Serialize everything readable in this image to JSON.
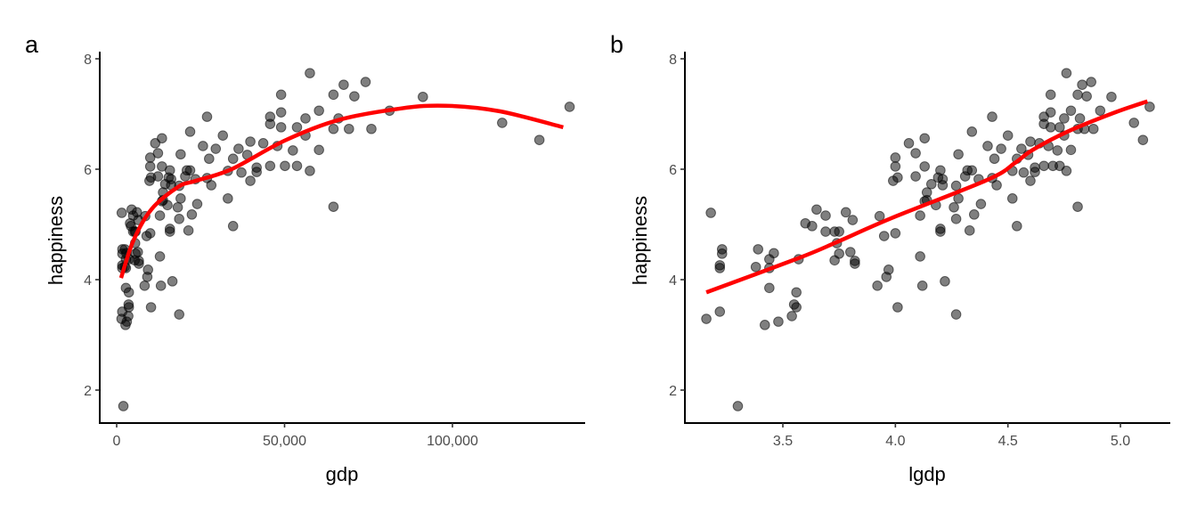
{
  "chart_data": [
    {
      "panel": "a",
      "type": "scatter",
      "xlabel": "gdp",
      "ylabel": "happiness",
      "xlim": [
        -5000,
        140000
      ],
      "ylim": [
        1.4,
        8.1
      ],
      "xticks": [
        0,
        50000,
        100000
      ],
      "xtick_labels": [
        "0",
        "50,000",
        "100,000"
      ],
      "yticks": [
        2,
        4,
        6,
        8
      ],
      "ytick_labels": [
        "2",
        "4",
        "6",
        "8"
      ],
      "point_color": "#000000",
      "smooth_color": "#ff0000",
      "x": [
        1514,
        1698,
        1698,
        1660,
        1660,
        1445,
        1660,
        1995,
        2455,
        2399,
        2754,
        2884,
        2754,
        2754,
        2630,
        3020,
        3467,
        3548,
        3631,
        3631,
        3715,
        3981,
        4266,
        4467,
        4898,
        4898,
        5370,
        5623,
        5495,
        5623,
        5370,
        6310,
        6607,
        6607,
        6026,
        6457,
        8511,
        8913,
        10000,
        8318,
        9333,
        9120,
        10233,
        12882,
        13183,
        12882,
        13804,
        57544,
        67608,
        74131,
        48978,
        64565,
        70795,
        91201,
        60256,
        48978,
        81283,
        45709,
        56234,
        66069,
        134896,
        114815,
        125893,
        45709,
        48978,
        53703,
        64565,
        69183,
        75858,
        56234,
        26915,
        21878,
        31623,
        13490,
        11482,
        25704,
        29512,
        39811,
        43652,
        47863,
        52481,
        60256,
        36308,
        12303,
        19055,
        27542,
        10000,
        10000,
        13490,
        34674,
        38905,
        15849,
        20893,
        21878,
        33113,
        41687,
        45709,
        50119,
        53703,
        57544,
        37154,
        41687,
        10233,
        9772,
        12303,
        15488,
        16218,
        20417,
        23442,
        26915,
        14454,
        16218,
        28184,
        39811,
        18621,
        13804,
        13490,
        15136,
        19055,
        33113,
        23988,
        18197,
        22387,
        18621,
        64565,
        15849,
        15849,
        21380,
        34674,
        16596,
        18621
      ],
      "y": [
        5.21,
        4.55,
        4.47,
        4.26,
        4.21,
        3.29,
        3.42,
        1.71,
        4.55,
        4.23,
        4.37,
        4.48,
        4.21,
        3.85,
        3.18,
        3.24,
        3.34,
        3.55,
        3.5,
        3.77,
        4.37,
        5.02,
        4.97,
        5.27,
        5.16,
        4.87,
        4.87,
        4.87,
        4.66,
        4.47,
        4.35,
        4.5,
        4.34,
        4.29,
        5.22,
        5.08,
        5.15,
        4.79,
        4.84,
        3.89,
        4.18,
        4.05,
        3.5,
        4.42,
        3.89,
        5.16,
        5.44,
        7.74,
        7.53,
        7.58,
        7.35,
        7.35,
        7.32,
        7.31,
        7.06,
        7.03,
        7.06,
        6.95,
        6.92,
        6.92,
        7.13,
        6.84,
        6.53,
        6.82,
        6.76,
        6.76,
        6.73,
        6.73,
        6.73,
        6.61,
        6.95,
        6.68,
        6.61,
        6.56,
        6.47,
        6.42,
        6.37,
        6.5,
        6.47,
        6.42,
        6.34,
        6.35,
        6.37,
        6.29,
        6.27,
        6.19,
        6.21,
        6.05,
        6.05,
        6.19,
        6.26,
        5.98,
        5.98,
        5.98,
        5.97,
        6.03,
        6.06,
        6.06,
        6.06,
        5.97,
        5.94,
        5.95,
        5.85,
        5.79,
        5.87,
        5.85,
        5.82,
        5.87,
        5.82,
        5.84,
        5.73,
        5.71,
        5.71,
        5.79,
        5.7,
        5.58,
        5.42,
        5.35,
        5.47,
        5.47,
        5.37,
        5.31,
        5.18,
        5.1,
        5.32,
        4.92,
        4.87,
        4.89,
        4.97,
        3.97,
        3.37
      ],
      "smooth": {
        "x": [
          1300,
          5000,
          10300,
          18300,
          23600,
          34200,
          50100,
          66000,
          84600,
          97900,
          114000,
          133000
        ],
        "y": [
          4.03,
          4.71,
          5.27,
          5.68,
          5.79,
          6.0,
          6.52,
          6.89,
          7.1,
          7.15,
          7.05,
          6.76
        ]
      }
    },
    {
      "panel": "b",
      "type": "scatter",
      "xlabel": "lgdp",
      "ylabel": "happiness",
      "xlim": [
        3.06,
        5.28
      ],
      "ylim": [
        1.4,
        8.1
      ],
      "xticks": [
        3.5,
        4.0,
        4.5,
        5.0
      ],
      "xtick_labels": [
        "3.5",
        "4.0",
        "4.5",
        "5.0"
      ],
      "yticks": [
        2,
        4,
        6,
        8
      ],
      "ytick_labels": [
        "2",
        "4",
        "6",
        "8"
      ],
      "point_color": "#000000",
      "smooth_color": "#ff0000",
      "x": [
        3.18,
        3.23,
        3.23,
        3.22,
        3.22,
        3.16,
        3.22,
        3.3,
        3.39,
        3.38,
        3.44,
        3.46,
        3.44,
        3.44,
        3.42,
        3.48,
        3.54,
        3.55,
        3.56,
        3.56,
        3.57,
        3.6,
        3.63,
        3.65,
        3.69,
        3.69,
        3.73,
        3.75,
        3.74,
        3.75,
        3.73,
        3.8,
        3.82,
        3.82,
        3.78,
        3.81,
        3.93,
        3.95,
        4.0,
        3.92,
        3.97,
        3.96,
        4.01,
        4.11,
        4.12,
        4.11,
        4.14,
        4.76,
        4.83,
        4.87,
        4.69,
        4.81,
        4.85,
        4.96,
        4.78,
        4.69,
        4.91,
        4.66,
        4.75,
        4.82,
        5.13,
        5.06,
        5.1,
        4.66,
        4.69,
        4.73,
        4.81,
        4.84,
        4.88,
        4.75,
        4.43,
        4.34,
        4.5,
        4.13,
        4.06,
        4.41,
        4.47,
        4.6,
        4.64,
        4.68,
        4.72,
        4.78,
        4.56,
        4.09,
        4.28,
        4.44,
        4.0,
        4.0,
        4.13,
        4.54,
        4.59,
        4.2,
        4.32,
        4.34,
        4.52,
        4.62,
        4.66,
        4.7,
        4.73,
        4.76,
        4.57,
        4.62,
        4.01,
        3.99,
        4.09,
        4.19,
        4.21,
        4.31,
        4.37,
        4.43,
        4.16,
        4.21,
        4.45,
        4.6,
        4.27,
        4.14,
        4.13,
        4.18,
        4.28,
        4.52,
        4.38,
        4.26,
        4.35,
        4.27,
        4.81,
        4.2,
        4.2,
        4.33,
        4.54,
        4.22,
        4.27
      ],
      "y": [
        5.21,
        4.55,
        4.47,
        4.26,
        4.21,
        3.29,
        3.42,
        1.71,
        4.55,
        4.23,
        4.37,
        4.48,
        4.21,
        3.85,
        3.18,
        3.24,
        3.34,
        3.55,
        3.5,
        3.77,
        4.37,
        5.02,
        4.97,
        5.27,
        5.16,
        4.87,
        4.87,
        4.87,
        4.66,
        4.47,
        4.35,
        4.5,
        4.34,
        4.29,
        5.22,
        5.08,
        5.15,
        4.79,
        4.84,
        3.89,
        4.18,
        4.05,
        3.5,
        4.42,
        3.89,
        5.16,
        5.44,
        7.74,
        7.53,
        7.58,
        7.35,
        7.35,
        7.32,
        7.31,
        7.06,
        7.03,
        7.06,
        6.95,
        6.92,
        6.92,
        7.13,
        6.84,
        6.53,
        6.82,
        6.76,
        6.76,
        6.73,
        6.73,
        6.73,
        6.61,
        6.95,
        6.68,
        6.61,
        6.56,
        6.47,
        6.42,
        6.37,
        6.5,
        6.47,
        6.42,
        6.34,
        6.35,
        6.37,
        6.29,
        6.27,
        6.19,
        6.21,
        6.05,
        6.05,
        6.19,
        6.26,
        5.98,
        5.98,
        5.98,
        5.97,
        6.03,
        6.06,
        6.06,
        6.06,
        5.97,
        5.94,
        5.95,
        5.85,
        5.79,
        5.87,
        5.85,
        5.82,
        5.87,
        5.82,
        5.84,
        5.73,
        5.71,
        5.71,
        5.79,
        5.7,
        5.58,
        5.42,
        5.35,
        5.47,
        5.47,
        5.37,
        5.31,
        5.18,
        5.1,
        5.32,
        4.92,
        4.87,
        4.89,
        4.97,
        3.97,
        3.37
      ],
      "smooth": {
        "x": [
          3.16,
          3.57,
          3.74,
          3.98,
          4.41,
          4.53,
          4.61,
          4.77,
          4.97,
          5.12
        ],
        "y": [
          3.77,
          4.39,
          4.68,
          5.11,
          5.81,
          6.11,
          6.35,
          6.69,
          7.02,
          7.23
        ]
      }
    }
  ]
}
